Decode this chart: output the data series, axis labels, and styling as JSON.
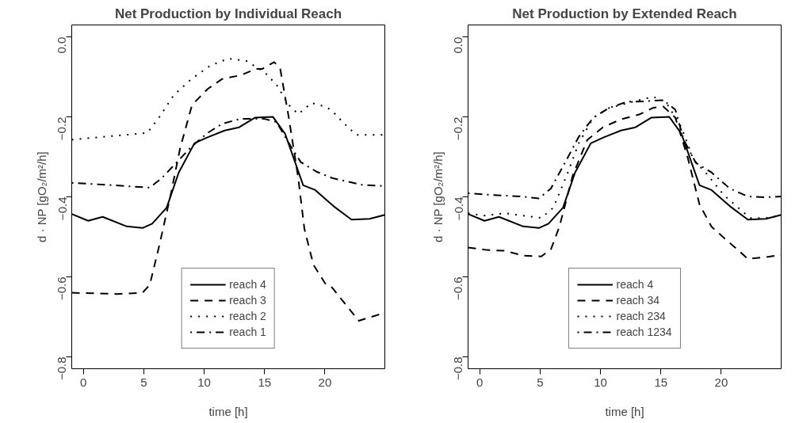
{
  "chart_data": [
    {
      "type": "line",
      "title": "Net Production by Individual Reach",
      "xlabel": "time [h]",
      "ylabel": "d · NP [gO₂/m²/h]",
      "xlim": [
        -0.96,
        24.96
      ],
      "ylim": [
        -0.83,
        0.03
      ],
      "xticks": [
        0,
        5,
        10,
        15,
        20
      ],
      "yticks": [
        {
          "value": 0,
          "label": "0.0"
        },
        -0.2,
        -0.4,
        -0.6,
        -0.8
      ],
      "grid": false,
      "legend": "bottom",
      "series": [
        {
          "name": "reach 4",
          "color": "#000000",
          "line_style": "solid",
          "x": [
            -0.96,
            0.4,
            1.6,
            3.6,
            4.9,
            5.7,
            6.9,
            7.9,
            9.2,
            10.2,
            11.7,
            12.9,
            14.2,
            15.7,
            16.7,
            18.2,
            19.2,
            20.7,
            22.2,
            23.7,
            24.96
          ],
          "values": [
            -0.443,
            -0.46,
            -0.45,
            -0.474,
            -0.478,
            -0.467,
            -0.427,
            -0.339,
            -0.266,
            -0.252,
            -0.234,
            -0.226,
            -0.202,
            -0.2,
            -0.242,
            -0.371,
            -0.383,
            -0.423,
            -0.457,
            -0.455,
            -0.445
          ]
        },
        {
          "name": "reach 3",
          "color": "#000000",
          "line_style": "dashed",
          "x": [
            -0.96,
            2.8,
            4.9,
            5.5,
            6.3,
            7.3,
            8.0,
            9.0,
            10.3,
            11.5,
            13.0,
            14.3,
            14.8,
            15.8,
            16.3,
            17.0,
            17.8,
            18.3,
            19.05,
            20.1,
            20.6,
            22.8,
            24.96
          ],
          "values": [
            -0.64,
            -0.643,
            -0.64,
            -0.62,
            -0.52,
            -0.385,
            -0.28,
            -0.17,
            -0.13,
            -0.105,
            -0.096,
            -0.08,
            -0.08,
            -0.063,
            -0.08,
            -0.2,
            -0.355,
            -0.48,
            -0.57,
            -0.62,
            -0.627,
            -0.71,
            -0.69
          ]
        },
        {
          "name": "reach 2",
          "color": "#000000",
          "line_style": "dotted",
          "x": [
            -0.96,
            5.3,
            6.3,
            7.5,
            9.0,
            10.5,
            12.0,
            13.5,
            15.0,
            16.0,
            17.0,
            17.8,
            18.9,
            20.1,
            20.6,
            21.6,
            22.6,
            24.96
          ],
          "values": [
            -0.257,
            -0.24,
            -0.2,
            -0.145,
            -0.104,
            -0.072,
            -0.054,
            -0.06,
            -0.088,
            -0.12,
            -0.17,
            -0.193,
            -0.165,
            -0.175,
            -0.185,
            -0.217,
            -0.245,
            -0.245
          ]
        },
        {
          "name": "reach 1",
          "color": "#000000",
          "line_style": "dotdash",
          "x": [
            -0.96,
            2,
            5.5,
            6.5,
            8,
            9,
            10.3,
            11.5,
            13,
            15,
            16,
            17,
            18,
            19.3,
            20.6,
            21.6,
            23.1,
            24.96
          ],
          "values": [
            -0.365,
            -0.37,
            -0.377,
            -0.353,
            -0.305,
            -0.273,
            -0.24,
            -0.217,
            -0.205,
            -0.205,
            -0.213,
            -0.265,
            -0.313,
            -0.337,
            -0.353,
            -0.36,
            -0.37,
            -0.373
          ]
        }
      ]
    },
    {
      "type": "line",
      "title": "Net Production by Extended Reach",
      "xlabel": "time [h]",
      "ylabel": "d · NP [gO₂/m²/h]",
      "xlim": [
        -0.96,
        24.96
      ],
      "ylim": [
        -0.83,
        0.03
      ],
      "xticks": [
        0,
        5,
        10,
        15,
        20
      ],
      "yticks": [
        {
          "value": 0,
          "label": "0.0"
        },
        -0.2,
        -0.4,
        -0.6,
        -0.8
      ],
      "grid": false,
      "legend": "bottom",
      "series": [
        {
          "name": "reach 4",
          "color": "#000000",
          "line_style": "solid",
          "x": [
            -0.96,
            0.4,
            1.6,
            3.6,
            4.9,
            5.7,
            6.9,
            7.9,
            9.2,
            10.2,
            11.7,
            12.9,
            14.2,
            15.7,
            16.7,
            18.2,
            19.2,
            20.7,
            22.2,
            23.7,
            24.96
          ],
          "values": [
            -0.443,
            -0.46,
            -0.45,
            -0.474,
            -0.478,
            -0.467,
            -0.427,
            -0.339,
            -0.266,
            -0.252,
            -0.234,
            -0.226,
            -0.202,
            -0.2,
            -0.242,
            -0.371,
            -0.383,
            -0.423,
            -0.457,
            -0.455,
            -0.445
          ]
        },
        {
          "name": "reach 34",
          "color": "#000000",
          "line_style": "dashed",
          "x": [
            -0.96,
            0.6,
            2.1,
            3.6,
            5.1,
            5.9,
            6.6,
            7.7,
            8.9,
            10.2,
            11.7,
            13.2,
            14.4,
            15.2,
            16.2,
            17.2,
            18.2,
            19.2,
            20.7,
            22.2,
            23.7,
            24.96
          ],
          "values": [
            -0.527,
            -0.533,
            -0.535,
            -0.547,
            -0.549,
            -0.531,
            -0.475,
            -0.347,
            -0.258,
            -0.226,
            -0.206,
            -0.194,
            -0.177,
            -0.174,
            -0.202,
            -0.299,
            -0.419,
            -0.475,
            -0.515,
            -0.555,
            -0.551,
            -0.545
          ]
        },
        {
          "name": "reach 234",
          "color": "#000000",
          "line_style": "dotted",
          "x": [
            -0.96,
            0.4,
            2.1,
            3.6,
            5.1,
            6.1,
            7.2,
            8.2,
            9.4,
            10.7,
            12.2,
            13.7,
            14.4,
            15.4,
            16.7,
            17.7,
            18.7,
            20.2,
            21.7,
            22.4,
            23.7,
            24.96
          ],
          "values": [
            -0.441,
            -0.447,
            -0.441,
            -0.447,
            -0.453,
            -0.427,
            -0.347,
            -0.266,
            -0.202,
            -0.178,
            -0.166,
            -0.154,
            -0.15,
            -0.162,
            -0.226,
            -0.307,
            -0.339,
            -0.395,
            -0.435,
            -0.453,
            -0.453,
            -0.447
          ]
        },
        {
          "name": "reach 1234",
          "color": "#000000",
          "line_style": "dotdash",
          "x": [
            -0.96,
            0.9,
            3.4,
            4.9,
            5.9,
            7.2,
            8.2,
            9.4,
            10.7,
            12.2,
            13.7,
            15.2,
            16.2,
            16.9,
            17.9,
            19.2,
            20.7,
            22.2,
            23.7,
            24.96
          ],
          "values": [
            -0.391,
            -0.395,
            -0.399,
            -0.404,
            -0.379,
            -0.307,
            -0.25,
            -0.202,
            -0.178,
            -0.162,
            -0.161,
            -0.158,
            -0.182,
            -0.258,
            -0.315,
            -0.339,
            -0.379,
            -0.399,
            -0.401,
            -0.399
          ]
        }
      ]
    }
  ]
}
